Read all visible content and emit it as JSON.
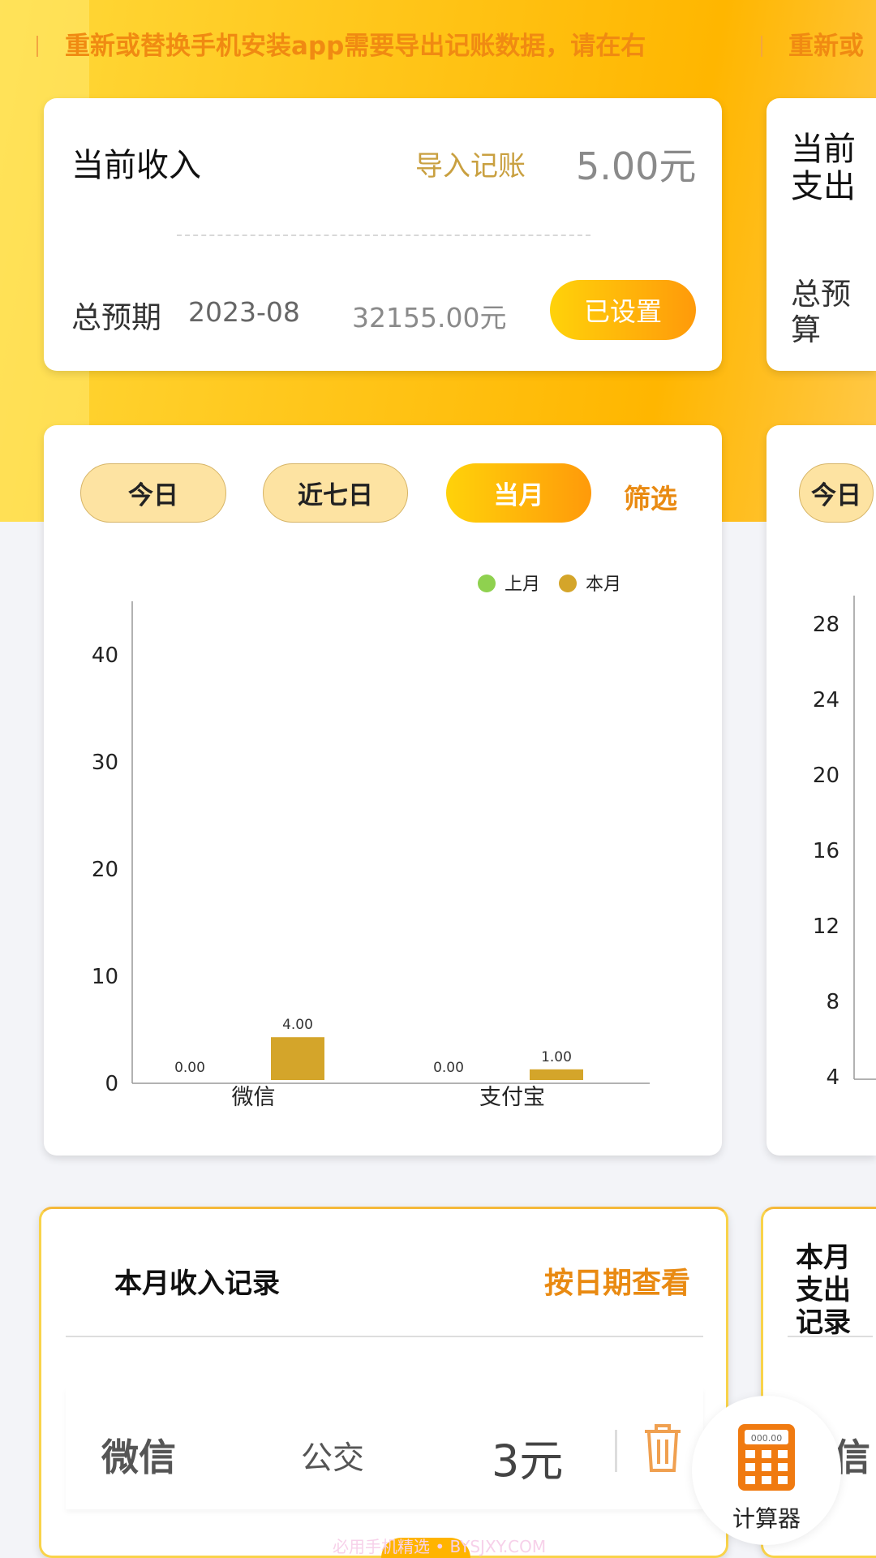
{
  "banner": {
    "text": "重新或替换手机安装app需要导出记账数据，请在右",
    "text_repeat": "重新或"
  },
  "income_card": {
    "title": "当前收入",
    "import_label": "导入记账",
    "amount": "5.00元",
    "budget_label": "总预期",
    "budget_month": "2023-08",
    "budget_amount": "32155.00元",
    "set_button": "已设置"
  },
  "expense_card": {
    "title": "当前支出",
    "budget_label": "总预算"
  },
  "filters": {
    "today": "今日",
    "seven_days": "近七日",
    "month": "当月",
    "filter": "筛选",
    "active": "当月"
  },
  "colors": {
    "accent": "#ff9a0a",
    "last_month": "#8fd14f",
    "this_month": "#d4a52a"
  },
  "chart_data": {
    "type": "bar",
    "categories": [
      "微信",
      "支付宝"
    ],
    "ylim": [
      0,
      45
    ],
    "yticks": [
      0,
      10,
      20,
      30,
      40
    ],
    "legend_position": "top-right",
    "series": [
      {
        "name": "上月",
        "values": [
          0,
          0
        ],
        "labels": [
          "0.00",
          "0.00"
        ]
      },
      {
        "name": "本月",
        "values": [
          4,
          1
        ],
        "labels": [
          "4.00",
          "1.00"
        ]
      }
    ]
  },
  "right_chart": {
    "yticks": [
      "28",
      "24",
      "20",
      "16",
      "12",
      "8",
      "4"
    ]
  },
  "records": {
    "title": "本月收入记录",
    "view_by_date": "按日期查看",
    "items": [
      {
        "source": "微信",
        "category": "公交",
        "amount": "3元"
      }
    ]
  },
  "right_records": {
    "title": "本月支出记录",
    "first_source": "微信"
  },
  "calculator": {
    "label": "计算器",
    "display": "000.00"
  },
  "watermark": "必用手机精选 • BYSJXY.COM"
}
